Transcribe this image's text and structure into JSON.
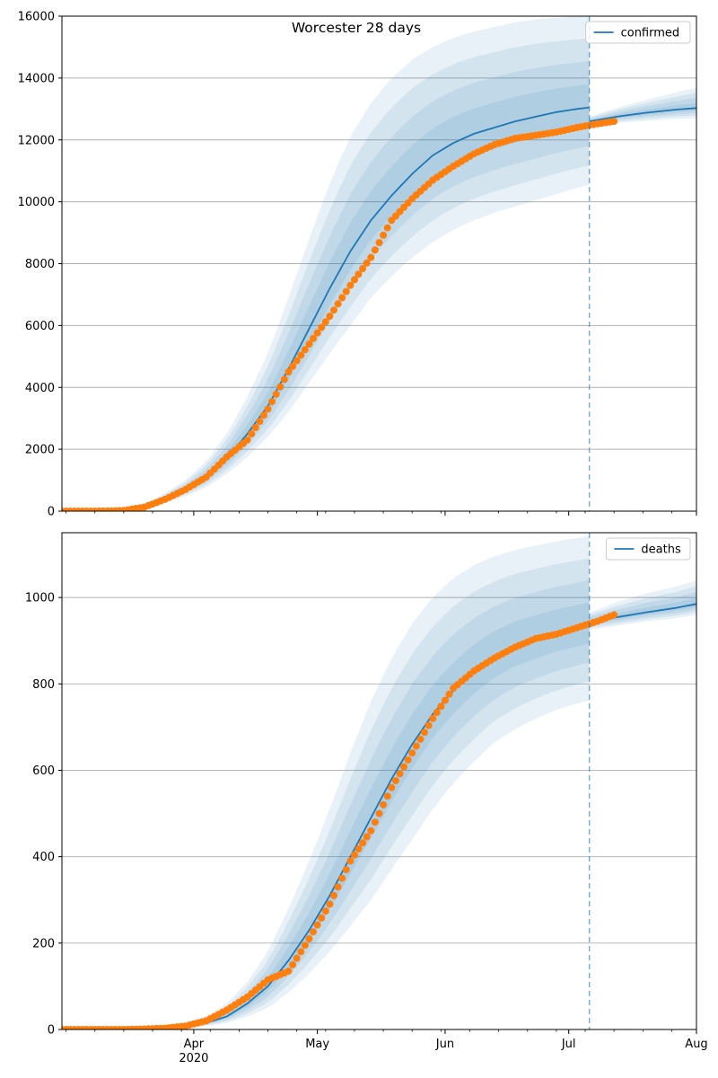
{
  "figure": {
    "title": "Worcester 28 days"
  },
  "colors": {
    "line": "#1f77b4",
    "points": "#ff7f0e",
    "band": "#1f77b4",
    "grid": "#b0b0b0"
  },
  "chart_data": [
    {
      "type": "line",
      "panel": "top",
      "series": [
        {
          "name": "confirmed",
          "kind": "model",
          "x": [
            "2020-02-29",
            "2020-03-05",
            "2020-03-10",
            "2020-03-15",
            "2020-03-20",
            "2020-03-25",
            "2020-03-30",
            "2020-04-04",
            "2020-04-09",
            "2020-04-14",
            "2020-04-19",
            "2020-04-24",
            "2020-04-29",
            "2020-05-04",
            "2020-05-09",
            "2020-05-14",
            "2020-05-19",
            "2020-05-24",
            "2020-05-29",
            "2020-06-03",
            "2020-06-08",
            "2020-06-13",
            "2020-06-18",
            "2020-06-23",
            "2020-06-28",
            "2020-07-03",
            "2020-07-06"
          ],
          "y": [
            0,
            0,
            5,
            40,
            150,
            400,
            700,
            1100,
            1700,
            2500,
            3400,
            4600,
            5900,
            7200,
            8400,
            9400,
            10200,
            10900,
            11500,
            11900,
            12200,
            12400,
            12600,
            12750,
            12900,
            13000,
            13050
          ],
          "upper": [
            0,
            0,
            8,
            60,
            220,
            580,
            1000,
            1600,
            2500,
            3700,
            5100,
            6900,
            8800,
            10600,
            12100,
            13200,
            14000,
            14600,
            15000,
            15300,
            15500,
            15650,
            15800,
            15900,
            15950,
            16000,
            16050
          ],
          "lower": [
            0,
            0,
            3,
            25,
            100,
            280,
            480,
            770,
            1200,
            1750,
            2400,
            3200,
            4150,
            5100,
            6000,
            6900,
            7600,
            8200,
            8700,
            9100,
            9400,
            9650,
            9850,
            10050,
            10250,
            10450,
            10550
          ]
        },
        {
          "name": "",
          "kind": "forecast",
          "x": [
            "2020-07-06",
            "2020-07-13",
            "2020-07-20",
            "2020-07-27",
            "2020-08-01"
          ],
          "y": [
            12600,
            12760,
            12880,
            12980,
            13030
          ],
          "upper": [
            12750,
            13050,
            13300,
            13530,
            13700
          ],
          "lower": [
            12450,
            12550,
            12620,
            12680,
            12700
          ]
        },
        {
          "name": "",
          "kind": "observed",
          "x": [
            "2020-02-29",
            "2020-03-05",
            "2020-03-10",
            "2020-03-15",
            "2020-03-20",
            "2020-03-25",
            "2020-03-30",
            "2020-04-04",
            "2020-04-09",
            "2020-04-14",
            "2020-04-19",
            "2020-04-24",
            "2020-04-29",
            "2020-05-04",
            "2020-05-09",
            "2020-05-14",
            "2020-05-19",
            "2020-05-24",
            "2020-05-29",
            "2020-06-03",
            "2020-06-08",
            "2020-06-13",
            "2020-06-18",
            "2020-06-23",
            "2020-06-28",
            "2020-07-03",
            "2020-07-08",
            "2020-07-12"
          ],
          "y": [
            0,
            0,
            2,
            20,
            130,
            380,
            700,
            1100,
            1750,
            2300,
            3300,
            4500,
            5400,
            6300,
            7300,
            8200,
            9400,
            10100,
            10700,
            11150,
            11550,
            11850,
            12050,
            12150,
            12250,
            12400,
            12520,
            12600
          ]
        }
      ],
      "x_range": [
        "2020-02-29",
        "2020-08-01"
      ],
      "xticks": [
        {
          "date": "2020-04-01",
          "label": "Apr",
          "sub": "2020"
        },
        {
          "date": "2020-05-01",
          "label": "May",
          "sub": ""
        },
        {
          "date": "2020-06-01",
          "label": "Jun",
          "sub": ""
        },
        {
          "date": "2020-07-01",
          "label": "Jul",
          "sub": ""
        },
        {
          "date": "2020-08-01",
          "label": "Aug",
          "sub": ""
        }
      ],
      "show_xtick_labels": false,
      "ylim": [
        0,
        16000
      ],
      "yticks": [
        0,
        2000,
        4000,
        6000,
        8000,
        10000,
        12000,
        14000,
        16000
      ],
      "vline": "2020-07-06",
      "grid": "horizontal",
      "legend": "top-right",
      "legend_entries": [
        "confirmed"
      ]
    },
    {
      "type": "line",
      "panel": "bottom",
      "series": [
        {
          "name": "deaths",
          "kind": "model",
          "x": [
            "2020-02-29",
            "2020-03-05",
            "2020-03-10",
            "2020-03-15",
            "2020-03-20",
            "2020-03-25",
            "2020-03-30",
            "2020-04-04",
            "2020-04-09",
            "2020-04-14",
            "2020-04-19",
            "2020-04-24",
            "2020-04-29",
            "2020-05-04",
            "2020-05-09",
            "2020-05-14",
            "2020-05-19",
            "2020-05-24",
            "2020-05-29",
            "2020-06-03",
            "2020-06-08",
            "2020-06-13",
            "2020-06-18",
            "2020-06-23",
            "2020-06-28",
            "2020-07-03",
            "2020-07-06"
          ],
          "y": [
            0,
            0,
            0,
            1,
            2,
            4,
            8,
            15,
            30,
            60,
            100,
            160,
            230,
            310,
            400,
            490,
            580,
            660,
            730,
            785,
            830,
            865,
            890,
            905,
            920,
            930,
            938
          ],
          "upper": [
            0,
            0,
            0,
            2,
            4,
            8,
            16,
            30,
            60,
            110,
            180,
            280,
            390,
            510,
            640,
            760,
            860,
            940,
            1000,
            1045,
            1075,
            1095,
            1110,
            1120,
            1130,
            1138,
            1142
          ],
          "lower": [
            0,
            0,
            0,
            0,
            1,
            2,
            4,
            8,
            15,
            30,
            50,
            85,
            130,
            180,
            240,
            300,
            370,
            440,
            510,
            570,
            620,
            665,
            695,
            720,
            740,
            755,
            762
          ]
        },
        {
          "name": "",
          "kind": "forecast",
          "x": [
            "2020-07-06",
            "2020-07-13",
            "2020-07-20",
            "2020-07-27",
            "2020-08-01"
          ],
          "y": [
            945,
            955,
            966,
            976,
            985
          ],
          "upper": [
            965,
            990,
            1010,
            1025,
            1040
          ],
          "lower": [
            925,
            935,
            945,
            952,
            960
          ]
        },
        {
          "name": "",
          "kind": "observed",
          "x": [
            "2020-02-29",
            "2020-03-05",
            "2020-03-10",
            "2020-03-15",
            "2020-03-20",
            "2020-03-25",
            "2020-03-30",
            "2020-04-04",
            "2020-04-09",
            "2020-04-14",
            "2020-04-19",
            "2020-04-24",
            "2020-04-29",
            "2020-05-04",
            "2020-05-09",
            "2020-05-14",
            "2020-05-19",
            "2020-05-24",
            "2020-05-29",
            "2020-06-03",
            "2020-06-08",
            "2020-06-13",
            "2020-06-18",
            "2020-06-23",
            "2020-06-28",
            "2020-07-03",
            "2020-07-08",
            "2020-07-12"
          ],
          "y": [
            0,
            0,
            0,
            0,
            1,
            3,
            8,
            20,
            45,
            75,
            115,
            135,
            210,
            290,
            390,
            460,
            560,
            640,
            720,
            790,
            830,
            860,
            885,
            905,
            915,
            930,
            945,
            960
          ]
        }
      ],
      "x_range": [
        "2020-02-29",
        "2020-08-01"
      ],
      "xticks": [
        {
          "date": "2020-04-01",
          "label": "Apr",
          "sub": "2020"
        },
        {
          "date": "2020-05-01",
          "label": "May",
          "sub": ""
        },
        {
          "date": "2020-06-01",
          "label": "Jun",
          "sub": ""
        },
        {
          "date": "2020-07-01",
          "label": "Jul",
          "sub": ""
        },
        {
          "date": "2020-08-01",
          "label": "Aug",
          "sub": ""
        }
      ],
      "show_xtick_labels": true,
      "ylim": [
        0,
        1150
      ],
      "yticks": [
        0,
        200,
        400,
        600,
        800,
        1000
      ],
      "vline": "2020-07-06",
      "grid": "horizontal",
      "legend": "top-right",
      "legend_entries": [
        "deaths"
      ]
    }
  ]
}
